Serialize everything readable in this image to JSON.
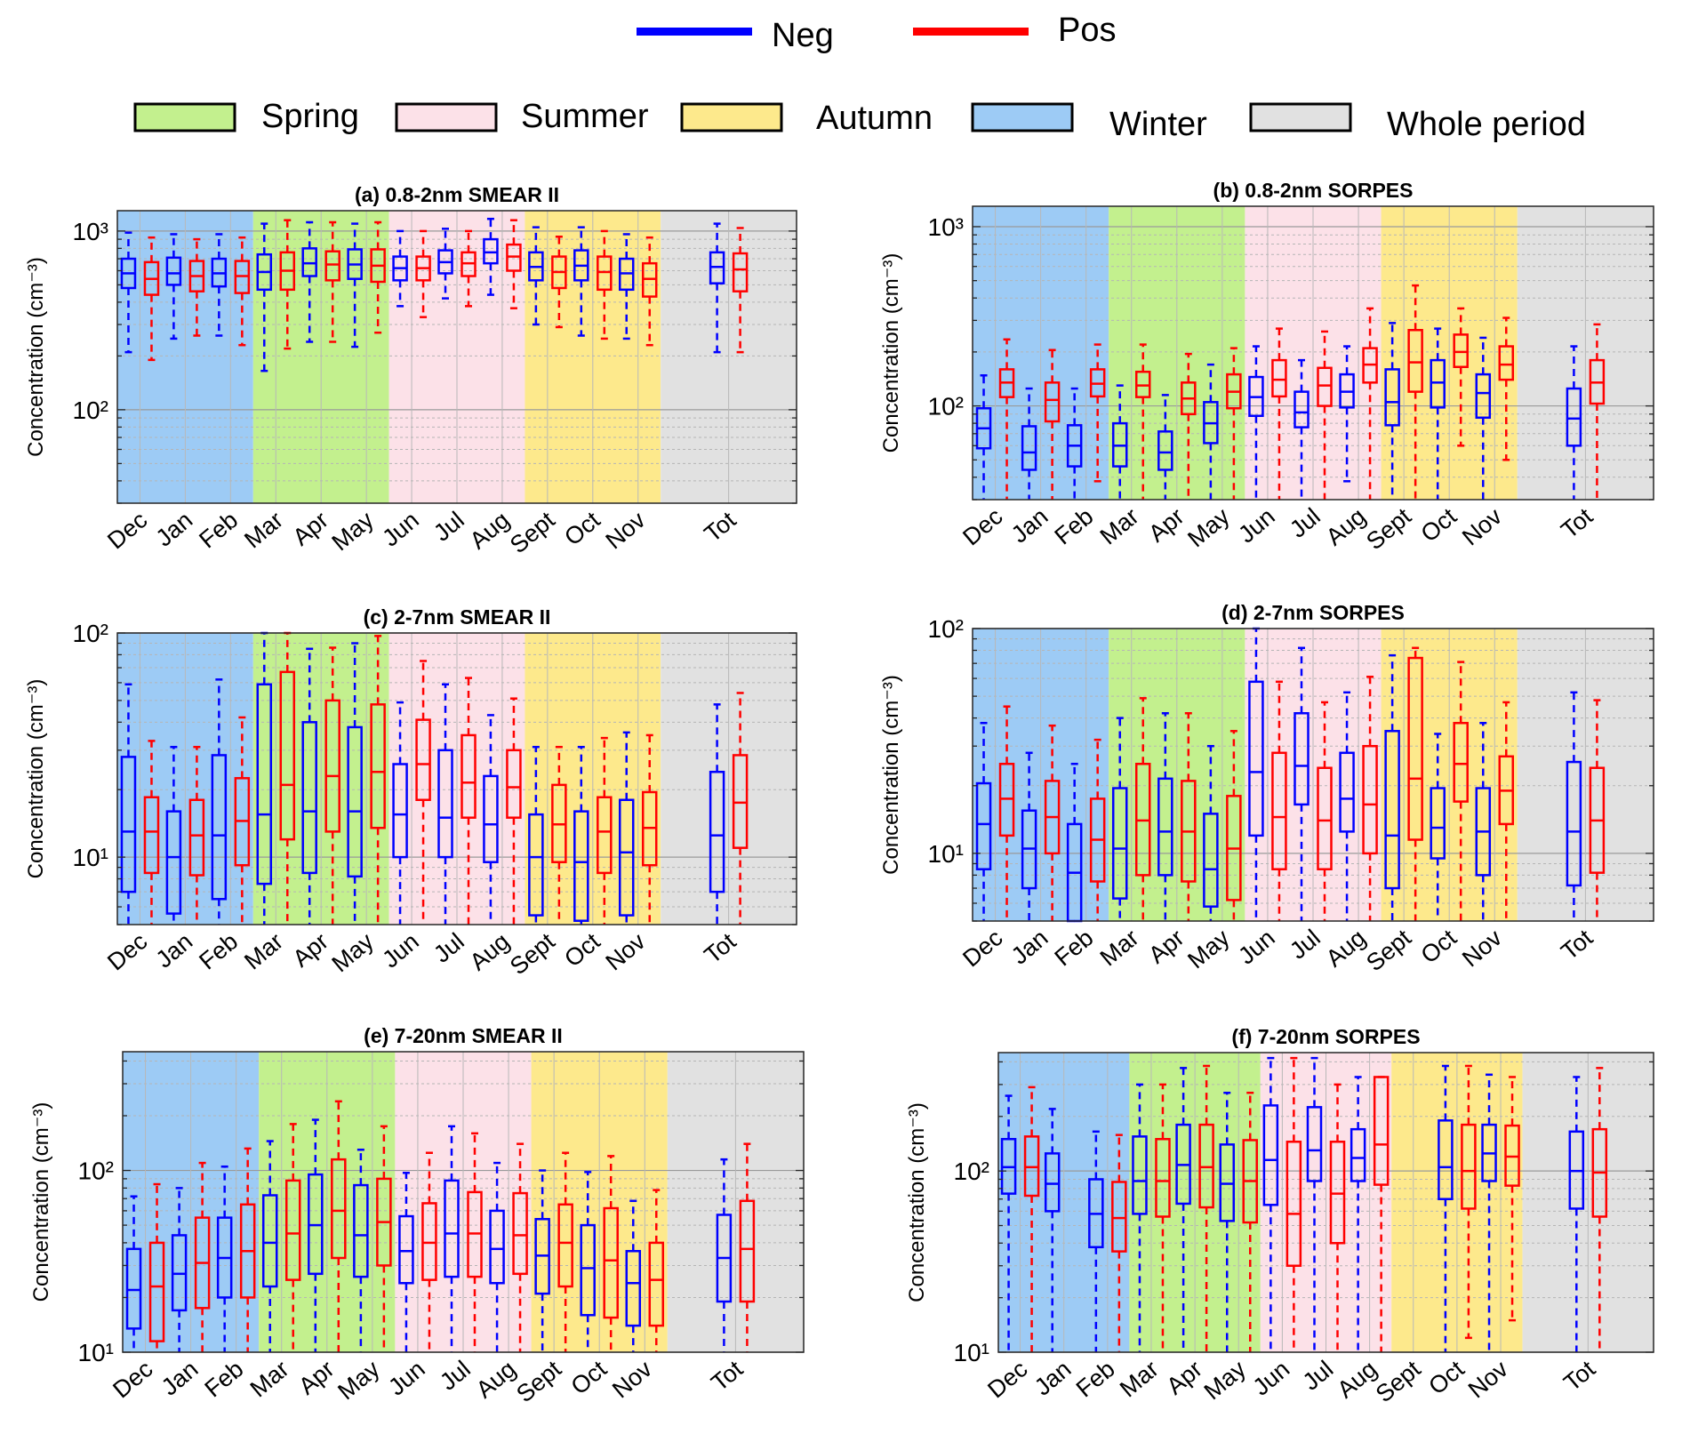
{
  "legend": {
    "series": [
      {
        "key": "neg",
        "label": "Neg",
        "color": "#0000FF"
      },
      {
        "key": "pos",
        "label": "Pos",
        "color": "#FF0000"
      }
    ],
    "seasons": [
      {
        "key": "spring",
        "label": "Spring",
        "color": "#C3F08E"
      },
      {
        "key": "summer",
        "label": "Summer",
        "color": "#FCE1E8"
      },
      {
        "key": "autumn",
        "label": "Autumn",
        "color": "#FDE98C"
      },
      {
        "key": "winter",
        "label": "Winter",
        "color": "#9DCBF5"
      },
      {
        "key": "whole",
        "label": "Whole period",
        "color": "#E1E1E1"
      }
    ]
  },
  "y_axis_label": "Concentration (cm⁻³)",
  "chart_data": [
    {
      "id": "a",
      "type": "box",
      "title": "(a) 0.8-2nm SMEAR II",
      "categories": [
        "Dec",
        "Jan",
        "Feb",
        "Mar",
        "Apr",
        "May",
        "Jun",
        "Jul",
        "Aug",
        "Sept",
        "Oct",
        "Nov",
        "Tot"
      ],
      "yscale": "log",
      "ylim": [
        30,
        1300
      ],
      "yticks": [
        100,
        1000
      ],
      "yticklabels": [
        "10²",
        "10³"
      ],
      "grid": true,
      "series": [
        {
          "name": "Neg",
          "whisker_low": [
            210,
            250,
            260,
            165,
            240,
            225,
            380,
            420,
            440,
            300,
            260,
            250,
            210
          ],
          "q1": [
            480,
            500,
            490,
            470,
            560,
            540,
            530,
            580,
            660,
            530,
            530,
            470,
            510
          ],
          "median": [
            580,
            580,
            580,
            590,
            660,
            650,
            620,
            670,
            760,
            630,
            640,
            580,
            630
          ],
          "q3": [
            700,
            710,
            700,
            740,
            800,
            790,
            720,
            780,
            900,
            760,
            780,
            700,
            760
          ],
          "whisker_high": [
            980,
            960,
            960,
            1100,
            1120,
            1100,
            1000,
            1030,
            1170,
            1050,
            1050,
            960,
            1100
          ]
        },
        {
          "name": "Pos",
          "whisker_low": [
            190,
            260,
            230,
            220,
            240,
            270,
            330,
            380,
            370,
            290,
            250,
            230,
            210
          ],
          "q1": [
            440,
            460,
            450,
            470,
            530,
            520,
            530,
            560,
            600,
            480,
            470,
            430,
            460
          ],
          "median": [
            540,
            560,
            560,
            600,
            650,
            640,
            620,
            660,
            720,
            590,
            590,
            540,
            610
          ],
          "q3": [
            670,
            680,
            680,
            760,
            770,
            790,
            720,
            760,
            840,
            720,
            720,
            660,
            750
          ],
          "whisker_high": [
            920,
            900,
            920,
            1150,
            1120,
            1120,
            1000,
            1000,
            1150,
            930,
            1000,
            920,
            1040
          ]
        }
      ]
    },
    {
      "id": "b",
      "type": "box",
      "title": "(b) 0.8-2nm SORPES",
      "categories": [
        "Dec",
        "Jan",
        "Feb",
        "Mar",
        "Apr",
        "May",
        "Jun",
        "Jul",
        "Aug",
        "Sept",
        "Oct",
        "Nov",
        "Tot"
      ],
      "yscale": "log",
      "ylim": [
        30,
        1300
      ],
      "yticks": [
        100,
        1000
      ],
      "yticklabels": [
        "10²",
        "10³"
      ],
      "grid": true,
      "series": [
        {
          "name": "Neg",
          "whisker_low": [
            30,
            30,
            30,
            30,
            30,
            30,
            30,
            30,
            38,
            30,
            30,
            30,
            30
          ],
          "q1": [
            58,
            44,
            46,
            46,
            44,
            62,
            88,
            76,
            98,
            78,
            98,
            86,
            60
          ],
          "median": [
            75,
            55,
            60,
            60,
            55,
            80,
            112,
            92,
            120,
            105,
            135,
            118,
            85
          ],
          "q3": [
            97,
            77,
            78,
            80,
            72,
            105,
            145,
            120,
            150,
            160,
            180,
            150,
            125
          ],
          "whisker_high": [
            148,
            125,
            125,
            130,
            115,
            170,
            215,
            180,
            215,
            290,
            270,
            240,
            215
          ]
        },
        {
          "name": "Pos",
          "whisker_low": [
            30,
            30,
            38,
            30,
            30,
            30,
            30,
            30,
            30,
            30,
            60,
            50,
            30
          ],
          "q1": [
            112,
            82,
            113,
            112,
            90,
            97,
            113,
            100,
            135,
            120,
            165,
            140,
            103
          ],
          "median": [
            135,
            108,
            133,
            130,
            110,
            120,
            140,
            130,
            170,
            175,
            200,
            170,
            135
          ],
          "q3": [
            160,
            135,
            160,
            155,
            135,
            150,
            180,
            163,
            210,
            265,
            250,
            215,
            180
          ],
          "whisker_high": [
            235,
            205,
            220,
            220,
            195,
            210,
            270,
            260,
            350,
            470,
            350,
            310,
            285
          ]
        }
      ]
    },
    {
      "id": "c",
      "type": "box",
      "title": "(c) 2-7nm SMEAR II",
      "categories": [
        "Dec",
        "Jan",
        "Feb",
        "Mar",
        "Apr",
        "May",
        "Jun",
        "Jul",
        "Aug",
        "Sept",
        "Oct",
        "Nov",
        "Tot"
      ],
      "yscale": "log",
      "ylim": [
        5,
        100
      ],
      "yticks": [
        10,
        100
      ],
      "yticklabels": [
        "10¹",
        "10²"
      ],
      "grid": true,
      "series": [
        {
          "name": "Neg",
          "whisker_low": [
            5,
            5,
            5,
            5,
            5,
            5,
            5,
            5,
            5,
            5,
            5,
            5,
            5
          ],
          "q1": [
            7,
            5.6,
            6.5,
            7.6,
            8.5,
            8.2,
            10,
            10,
            9.5,
            5.5,
            5.2,
            5.5,
            7
          ],
          "median": [
            13,
            10,
            12.5,
            15.5,
            16,
            16,
            15.5,
            15,
            14,
            10,
            9.5,
            10.5,
            12.5
          ],
          "q3": [
            28,
            16,
            28.5,
            59,
            40,
            38,
            26,
            30,
            23,
            15.5,
            16,
            18,
            24
          ],
          "whisker_high": [
            59,
            31,
            62,
            100,
            85,
            90,
            49,
            59,
            43,
            31,
            31,
            36,
            48
          ]
        },
        {
          "name": "Pos",
          "whisker_low": [
            5,
            5,
            5,
            5,
            5,
            5,
            5,
            5,
            5,
            5,
            5,
            5,
            5
          ],
          "q1": [
            8.5,
            8.3,
            9.2,
            12,
            13,
            13.5,
            18,
            15,
            15,
            9.5,
            8.5,
            9.2,
            11
          ],
          "median": [
            13,
            12.5,
            14.5,
            21,
            23,
            24,
            26,
            21.5,
            20.5,
            14,
            13,
            13.5,
            17.5
          ],
          "q3": [
            18.5,
            18,
            22.5,
            67,
            50,
            48,
            41,
            35,
            30,
            21,
            18.5,
            19.5,
            28.5
          ],
          "whisker_high": [
            33,
            31,
            42,
            100,
            86,
            97,
            75,
            63,
            51,
            31,
            34,
            35,
            54
          ]
        }
      ]
    },
    {
      "id": "d",
      "type": "box",
      "title": "(d) 2-7nm SORPES",
      "categories": [
        "Dec",
        "Jan",
        "Feb",
        "Mar",
        "Apr",
        "May",
        "Jun",
        "Jul",
        "Aug",
        "Sept",
        "Oct",
        "Nov",
        "Tot"
      ],
      "yscale": "log",
      "ylim": [
        5,
        100
      ],
      "yticks": [
        10,
        100
      ],
      "yticklabels": [
        "10¹",
        "10²"
      ],
      "grid": true,
      "series": [
        {
          "name": "Neg",
          "whisker_low": [
            5,
            5,
            5,
            5,
            5,
            5,
            5,
            5,
            5,
            5,
            5,
            5,
            5
          ],
          "q1": [
            8.5,
            7,
            5,
            6.3,
            8,
            5.8,
            12,
            16.5,
            12.5,
            7,
            9.5,
            8,
            7.2
          ],
          "median": [
            13.5,
            10.5,
            8.2,
            10.5,
            12.5,
            8.5,
            23,
            24.5,
            17.5,
            12,
            13,
            12.5,
            12.5
          ],
          "q3": [
            20.5,
            15.5,
            13.5,
            19.5,
            21.5,
            15,
            58,
            42,
            28,
            35,
            19.5,
            19.5,
            25.5
          ],
          "whisker_high": [
            38,
            28,
            25,
            40,
            42,
            30,
            100,
            82,
            52,
            76,
            34,
            38,
            52
          ]
        },
        {
          "name": "Pos",
          "whisker_low": [
            5,
            5,
            5,
            5,
            5,
            5,
            5,
            5,
            5,
            5,
            5,
            5,
            5
          ],
          "q1": [
            12,
            10,
            7.5,
            8,
            7.5,
            6.2,
            8.5,
            8.5,
            10,
            11.5,
            17,
            13.5,
            8.2
          ],
          "median": [
            17.5,
            14.5,
            11.5,
            14,
            12.5,
            10.5,
            14.5,
            14,
            16.5,
            21.5,
            25,
            19,
            14
          ],
          "q3": [
            25,
            21,
            17.5,
            25,
            21,
            18,
            28,
            24,
            30,
            74,
            38,
            27,
            24
          ],
          "whisker_high": [
            45,
            37,
            32,
            49,
            42,
            35,
            58,
            47,
            61,
            82,
            71,
            47,
            48
          ]
        }
      ]
    },
    {
      "id": "e",
      "type": "box",
      "title": "(e) 7-20nm SMEAR II",
      "categories": [
        "Dec",
        "Jan",
        "Feb",
        "Mar",
        "Apr",
        "May",
        "Jun",
        "Jul",
        "Aug",
        "Sept",
        "Oct",
        "Nov",
        "Tot"
      ],
      "yscale": "log",
      "ylim": [
        10,
        450
      ],
      "yticks": [
        10,
        100
      ],
      "yticklabels": [
        "10¹",
        "10²"
      ],
      "grid": true,
      "series": [
        {
          "name": "Neg",
          "whisker_low": [
            10,
            10,
            10,
            10,
            10,
            10,
            10,
            10,
            10,
            10,
            10,
            10,
            10
          ],
          "q1": [
            13.5,
            17,
            20,
            23,
            27,
            26,
            24,
            26,
            24,
            21,
            16,
            14,
            19
          ],
          "median": [
            22,
            27,
            33,
            40,
            50,
            44,
            36,
            45,
            37,
            34,
            29,
            24,
            33
          ],
          "q3": [
            37,
            44,
            55,
            73,
            95,
            83,
            56,
            88,
            60,
            54,
            50,
            36,
            57
          ],
          "whisker_high": [
            72,
            80,
            105,
            145,
            190,
            130,
            97,
            175,
            110,
            100,
            98,
            68,
            115
          ]
        },
        {
          "name": "Pos",
          "whisker_low": [
            10,
            10,
            10,
            10,
            10,
            10,
            10,
            10,
            10,
            10,
            10,
            10,
            10
          ],
          "q1": [
            11.5,
            17.5,
            20,
            25,
            33,
            30,
            25,
            26,
            27,
            23,
            15.5,
            14,
            19
          ],
          "median": [
            23,
            31,
            36,
            45,
            60,
            52,
            40,
            45,
            44,
            40,
            32,
            25,
            37
          ],
          "q3": [
            40,
            55,
            65,
            88,
            115,
            90,
            66,
            76,
            75,
            65,
            62,
            40,
            68
          ],
          "whisker_high": [
            84,
            110,
            132,
            180,
            240,
            175,
            125,
            160,
            140,
            125,
            120,
            78,
            140
          ]
        }
      ]
    },
    {
      "id": "f",
      "type": "box",
      "title": "(f) 7-20nm SORPES",
      "categories": [
        "Dec",
        "Jan",
        "Feb",
        "Mar",
        "Apr",
        "May",
        "Jun",
        "Jul",
        "Aug",
        "Sept",
        "Oct",
        "Nov",
        "Tot"
      ],
      "yscale": "log",
      "ylim": [
        10,
        450
      ],
      "yticks": [
        10,
        100
      ],
      "yticklabels": [
        "10¹",
        "10²"
      ],
      "grid": true,
      "series": [
        {
          "name": "Neg",
          "whisker_low": [
            10,
            10,
            10,
            10,
            10,
            10,
            10,
            10,
            10,
            null,
            10,
            10,
            10
          ],
          "q1": [
            75,
            60,
            38,
            58,
            66,
            53,
            65,
            88,
            88,
            null,
            70,
            88,
            62
          ],
          "median": [
            105,
            85,
            58,
            88,
            108,
            85,
            115,
            130,
            118,
            null,
            105,
            125,
            100
          ],
          "q3": [
            150,
            125,
            90,
            155,
            180,
            140,
            230,
            225,
            170,
            null,
            190,
            180,
            165
          ],
          "whisker_high": [
            260,
            220,
            165,
            300,
            370,
            270,
            420,
            420,
            330,
            null,
            380,
            340,
            330
          ]
        },
        {
          "name": "Pos",
          "whisker_low": [
            10,
            10,
            10,
            10,
            10,
            10,
            10,
            10,
            10,
            null,
            12,
            15,
            10
          ],
          "q1": [
            73,
            null,
            36,
            56,
            63,
            52,
            30,
            40,
            84,
            null,
            62,
            83,
            56
          ],
          "median": [
            105,
            null,
            55,
            88,
            105,
            88,
            58,
            75,
            140,
            null,
            100,
            120,
            98
          ],
          "q3": [
            155,
            null,
            87,
            150,
            180,
            148,
            145,
            145,
            330,
            null,
            180,
            178,
            170
          ],
          "whisker_high": [
            290,
            null,
            158,
            300,
            380,
            270,
            420,
            300,
            330,
            null,
            380,
            330,
            370
          ]
        }
      ]
    }
  ]
}
